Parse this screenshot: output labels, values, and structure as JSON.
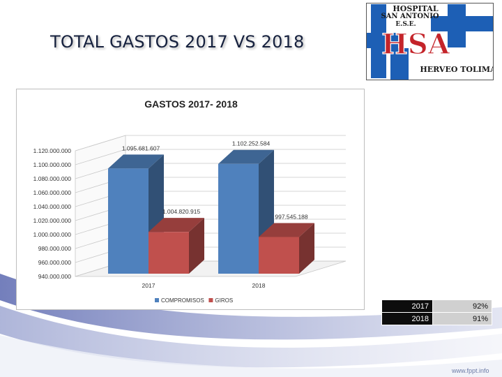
{
  "slide": {
    "title": "TOTAL GASTOS 2017 VS 2018",
    "footer_url": "www.fppt.info"
  },
  "logo": {
    "line1": "HOSPITAL",
    "line2": "SAN ANTONIO",
    "line3": "E.S.E.",
    "monogram": "HSA",
    "subtitle": "HERVEO TOLIMA",
    "colors": {
      "cross": "#1d5fb5",
      "monogram": "#c4242a",
      "text": "#1a1a1a"
    }
  },
  "chart_data": {
    "type": "bar",
    "title": "GASTOS 2017- 2018",
    "categories": [
      "2017",
      "2018"
    ],
    "series": [
      {
        "name": "COMPROMISOS",
        "color": "#4f81bd",
        "values": [
          1095681607,
          1102252584
        ],
        "labels": [
          "1.095.681.607",
          "1.102.252.584"
        ]
      },
      {
        "name": "GIROS",
        "color": "#c0504d",
        "values": [
          1004820915,
          997545188
        ],
        "labels": [
          "1.004.820.915",
          "997.545.188"
        ]
      }
    ],
    "ylim": [
      940000000,
      1120000000
    ],
    "yticks": [
      940000000,
      960000000,
      980000000,
      1000000000,
      1020000000,
      1040000000,
      1060000000,
      1080000000,
      1100000000,
      1120000000
    ],
    "ytick_labels": [
      "940.000.000",
      "960.000.000",
      "980.000.000",
      "1.000.000.000",
      "1.020.000.000",
      "1.040.000.000",
      "1.060.000.000",
      "1.080.000.000",
      "1.100.000.000",
      "1.120.000.000"
    ],
    "grid": true,
    "three_d": true,
    "legend": "bottom"
  },
  "ratio_table": {
    "rows": [
      {
        "year": "2017",
        "pct": "92%"
      },
      {
        "year": "2018",
        "pct": "91%"
      }
    ]
  }
}
